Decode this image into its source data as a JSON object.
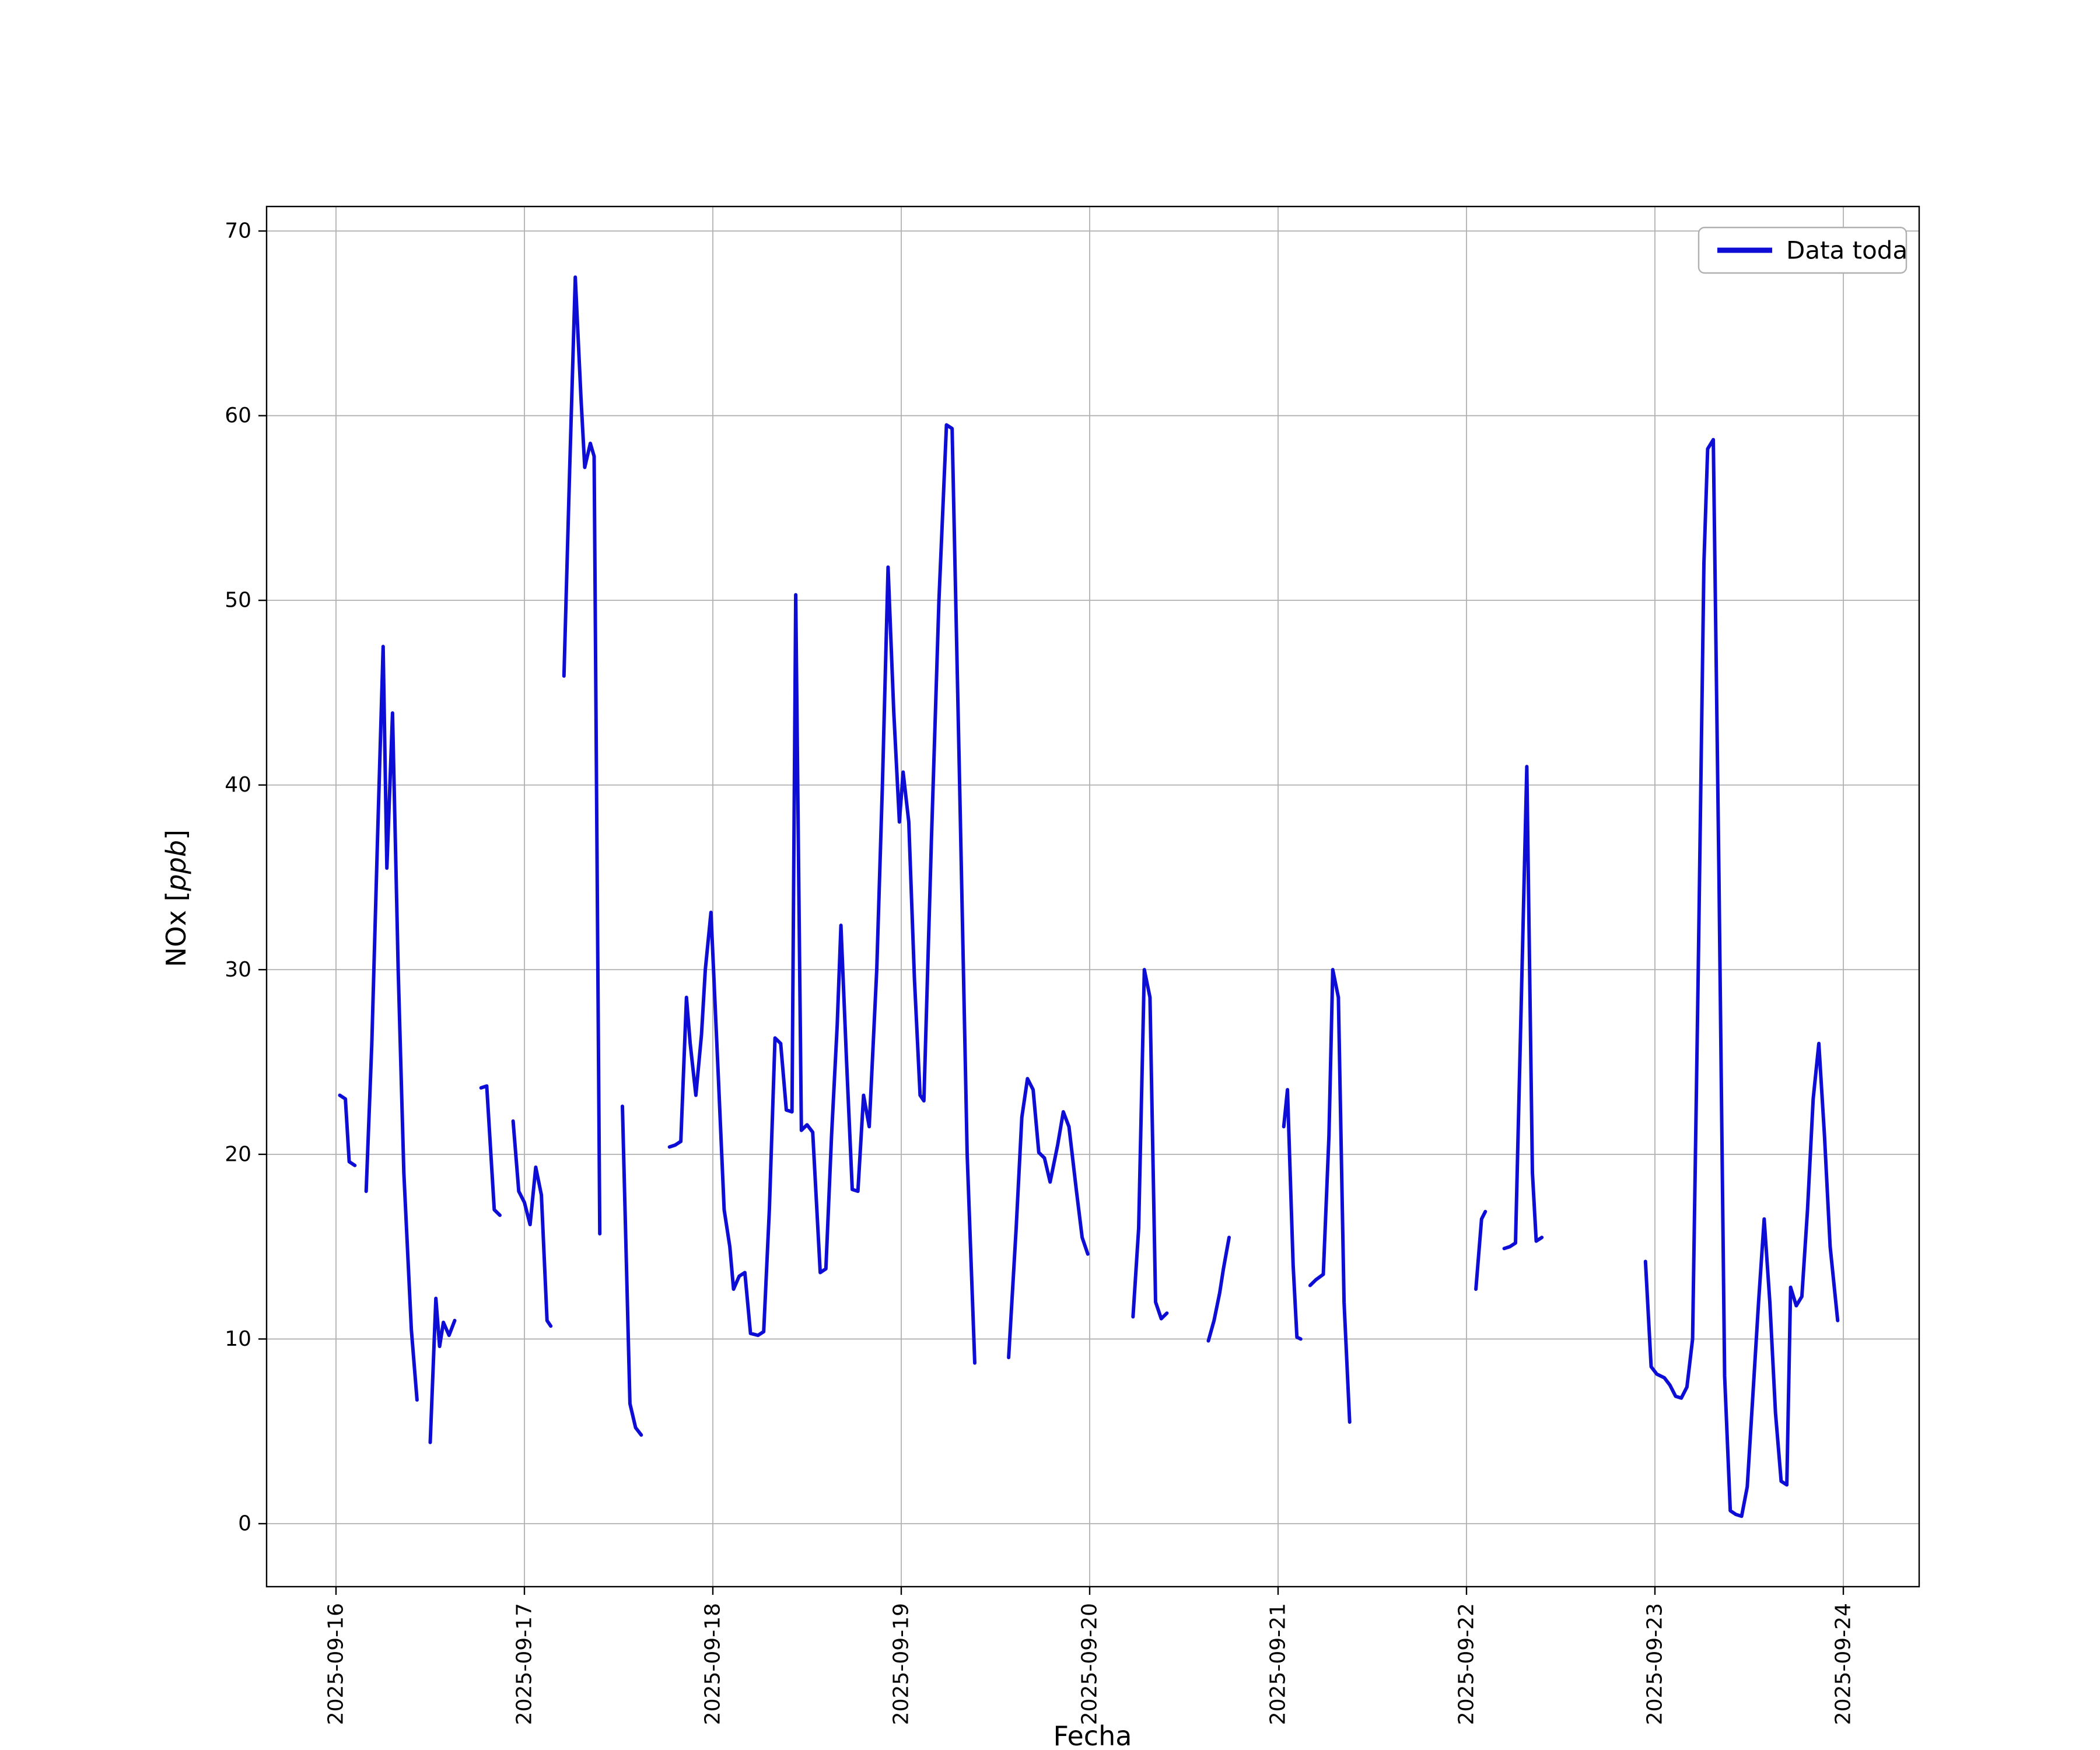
{
  "chart_data": {
    "type": "line",
    "title": "",
    "xlabel": "Fecha",
    "ylabel": "NOx [ppb]",
    "ylabel_parts": {
      "prefix": "NOx [",
      "italic": "ppb",
      "suffix": "]"
    },
    "legend": {
      "label": "Data toda",
      "position": "upper right"
    },
    "line_color": "#0d0dd6",
    "grid": true,
    "ylim": [
      -3.4,
      71.3
    ],
    "xlim_days": [
      -0.37,
      8.4
    ],
    "y_ticks": [
      0,
      10,
      20,
      30,
      40,
      50,
      60,
      70
    ],
    "x_tick_days": [
      0,
      1,
      2,
      3,
      4,
      5,
      6,
      7,
      8
    ],
    "x_tick_labels": [
      "2025-09-16",
      "2025-09-17",
      "2025-09-18",
      "2025-09-19",
      "2025-09-20",
      "2025-09-21",
      "2025-09-22",
      "2025-09-23",
      "2025-09-24"
    ],
    "x_unit": "days since 2025-09-16 00:00",
    "series": [
      {
        "name": "Data toda",
        "points": [
          [
            0.02,
            23.2
          ],
          [
            0.05,
            23.0
          ],
          [
            0.07,
            19.6
          ],
          [
            0.1,
            19.4
          ],
          null,
          [
            0.16,
            18.0
          ],
          [
            0.19,
            26.0
          ],
          [
            0.22,
            37.0
          ],
          [
            0.25,
            47.5
          ],
          [
            0.27,
            35.5
          ],
          [
            0.3,
            43.9
          ],
          [
            0.33,
            30.0
          ],
          [
            0.36,
            19.0
          ],
          [
            0.4,
            10.5
          ],
          [
            0.43,
            6.7
          ],
          null,
          [
            0.5,
            4.4
          ],
          [
            0.53,
            12.2
          ],
          [
            0.55,
            9.6
          ],
          [
            0.57,
            10.9
          ],
          [
            0.6,
            10.2
          ],
          [
            0.63,
            11.0
          ],
          null,
          [
            0.77,
            23.6
          ],
          [
            0.8,
            23.7
          ],
          [
            0.84,
            17.0
          ],
          [
            0.87,
            16.7
          ],
          null,
          [
            0.94,
            21.8
          ],
          [
            0.97,
            18.0
          ],
          [
            1.0,
            17.4
          ],
          [
            1.03,
            16.2
          ],
          [
            1.06,
            19.3
          ],
          [
            1.09,
            17.8
          ],
          [
            1.12,
            11.0
          ],
          [
            1.14,
            10.7
          ],
          null,
          [
            1.21,
            45.9
          ],
          [
            1.24,
            57.0
          ],
          [
            1.27,
            67.5
          ],
          [
            1.3,
            61.0
          ],
          [
            1.32,
            57.2
          ],
          [
            1.35,
            58.5
          ],
          [
            1.37,
            57.8
          ],
          [
            1.4,
            15.7
          ],
          null,
          [
            1.52,
            22.6
          ],
          [
            1.56,
            6.5
          ],
          [
            1.59,
            5.2
          ],
          [
            1.62,
            4.8
          ],
          null,
          [
            1.77,
            20.4
          ],
          [
            1.8,
            20.5
          ],
          [
            1.83,
            20.7
          ],
          [
            1.86,
            28.5
          ],
          [
            1.88,
            26.0
          ],
          [
            1.91,
            23.2
          ],
          [
            1.94,
            26.5
          ],
          [
            1.96,
            30.0
          ],
          [
            1.99,
            33.1
          ],
          [
            2.03,
            24.0
          ],
          [
            2.06,
            17.0
          ],
          [
            2.09,
            15.0
          ],
          [
            2.11,
            12.7
          ],
          [
            2.14,
            13.4
          ],
          [
            2.17,
            13.6
          ],
          [
            2.2,
            10.3
          ],
          [
            2.24,
            10.2
          ],
          [
            2.27,
            10.4
          ],
          [
            2.3,
            17.0
          ],
          [
            2.33,
            26.3
          ],
          [
            2.36,
            26.0
          ],
          [
            2.39,
            22.4
          ],
          [
            2.42,
            22.3
          ],
          [
            2.44,
            50.3
          ],
          [
            2.47,
            21.3
          ],
          [
            2.5,
            21.6
          ],
          [
            2.53,
            21.2
          ],
          [
            2.57,
            13.6
          ],
          [
            2.6,
            13.8
          ],
          [
            2.63,
            21.0
          ],
          [
            2.66,
            27.0
          ],
          [
            2.68,
            32.4
          ],
          [
            2.71,
            25.0
          ],
          [
            2.74,
            18.1
          ],
          [
            2.77,
            18.0
          ],
          [
            2.8,
            23.2
          ],
          [
            2.83,
            21.5
          ],
          [
            2.87,
            30.0
          ],
          [
            2.9,
            40.0
          ],
          [
            2.93,
            51.8
          ],
          [
            2.96,
            44.0
          ],
          [
            2.99,
            38.0
          ],
          [
            3.01,
            40.7
          ],
          [
            3.04,
            38.0
          ],
          [
            3.07,
            29.5
          ],
          [
            3.1,
            23.2
          ],
          [
            3.12,
            22.9
          ],
          [
            3.16,
            37.0
          ],
          [
            3.2,
            50.0
          ],
          [
            3.24,
            59.5
          ],
          [
            3.27,
            59.3
          ],
          [
            3.31,
            40.0
          ],
          [
            3.35,
            20.0
          ],
          [
            3.39,
            8.7
          ],
          null,
          [
            3.57,
            9.0
          ],
          [
            3.61,
            16.0
          ],
          [
            3.64,
            22.0
          ],
          [
            3.67,
            24.1
          ],
          [
            3.7,
            23.5
          ],
          [
            3.73,
            20.1
          ],
          [
            3.76,
            19.8
          ],
          [
            3.79,
            18.5
          ],
          [
            3.83,
            20.5
          ],
          [
            3.86,
            22.3
          ],
          [
            3.89,
            21.5
          ],
          [
            3.93,
            18.0
          ],
          [
            3.96,
            15.5
          ],
          [
            3.99,
            14.6
          ],
          null,
          [
            4.23,
            11.2
          ],
          [
            4.26,
            16.0
          ],
          [
            4.29,
            30.0
          ],
          [
            4.32,
            28.5
          ],
          [
            4.35,
            12.0
          ],
          [
            4.38,
            11.1
          ],
          [
            4.41,
            11.4
          ],
          null,
          [
            4.63,
            9.9
          ],
          [
            4.66,
            11.0
          ],
          [
            4.69,
            12.5
          ],
          [
            4.71,
            13.8
          ],
          [
            4.74,
            15.5
          ],
          null,
          [
            5.03,
            21.5
          ],
          [
            5.05,
            23.5
          ],
          [
            5.08,
            14.0
          ],
          [
            5.1,
            10.1
          ],
          [
            5.12,
            10.0
          ],
          null,
          [
            5.17,
            12.9
          ],
          [
            5.2,
            13.2
          ],
          [
            5.24,
            13.5
          ],
          [
            5.27,
            21.0
          ],
          [
            5.29,
            30.0
          ],
          [
            5.32,
            28.5
          ],
          [
            5.35,
            12.0
          ],
          [
            5.38,
            5.5
          ],
          null,
          [
            6.05,
            12.7
          ],
          [
            6.08,
            16.5
          ],
          [
            6.1,
            16.9
          ],
          null,
          [
            6.2,
            14.9
          ],
          [
            6.23,
            15.0
          ],
          [
            6.26,
            15.2
          ],
          [
            6.29,
            28.0
          ],
          [
            6.32,
            41.0
          ],
          [
            6.35,
            19.0
          ],
          [
            6.37,
            15.3
          ],
          [
            6.4,
            15.5
          ],
          null,
          [
            6.95,
            14.2
          ],
          [
            6.98,
            8.5
          ],
          [
            7.01,
            8.1
          ],
          [
            7.05,
            7.9
          ],
          [
            7.08,
            7.5
          ],
          [
            7.11,
            6.9
          ],
          [
            7.14,
            6.8
          ],
          [
            7.17,
            7.4
          ],
          [
            7.2,
            10.0
          ],
          [
            7.23,
            30.0
          ],
          [
            7.26,
            52.0
          ],
          [
            7.28,
            58.2
          ],
          [
            7.31,
            58.7
          ],
          [
            7.34,
            35.0
          ],
          [
            7.37,
            8.0
          ],
          [
            7.4,
            0.7
          ],
          [
            7.43,
            0.5
          ],
          [
            7.46,
            0.4
          ],
          [
            7.49,
            2.0
          ],
          [
            7.52,
            7.0
          ],
          [
            7.55,
            12.0
          ],
          [
            7.58,
            16.5
          ],
          [
            7.61,
            12.0
          ],
          [
            7.64,
            6.0
          ],
          [
            7.67,
            2.3
          ],
          [
            7.7,
            2.1
          ],
          [
            7.72,
            12.8
          ],
          [
            7.75,
            11.8
          ],
          [
            7.78,
            12.3
          ],
          [
            7.81,
            17.0
          ],
          [
            7.84,
            23.0
          ],
          [
            7.87,
            26.0
          ],
          [
            7.9,
            21.0
          ],
          [
            7.93,
            15.0
          ],
          [
            7.97,
            11.0
          ]
        ]
      }
    ]
  }
}
